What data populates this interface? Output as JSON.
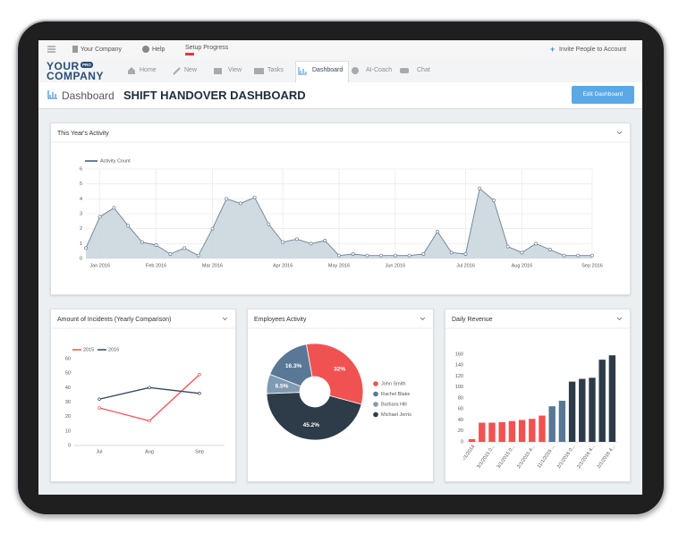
{
  "topbar": {
    "company": "Your Company",
    "help": "Help",
    "setup": "Setup Progress",
    "invite": "Invite People to Account"
  },
  "logo": {
    "line1": "YOUR",
    "badge": "PRO",
    "line2": "COMPANY"
  },
  "nav": [
    "Home",
    "New",
    "View",
    "Tasks",
    "Dashboard",
    "AI-Coach",
    "Chat"
  ],
  "header": {
    "section": "Dashboard",
    "title": "SHIFT HANDOVER DASHBOARD",
    "button": "Edit Dashboard"
  },
  "chart_data": [
    {
      "type": "area",
      "title": "This Year's Activity",
      "categories": [
        null,
        "Jan 2016",
        null,
        null,
        null,
        "Feb 2016",
        null,
        null,
        null,
        "Mar 2016",
        null,
        null,
        null,
        null,
        "Apr 2016",
        null,
        null,
        null,
        "May 2016",
        null,
        null,
        null,
        "Jun 2016",
        null,
        null,
        null,
        null,
        "Jul 2016",
        null,
        null,
        null,
        "Aug 2016",
        null,
        null,
        null,
        null,
        "Sep 2016"
      ],
      "series": [
        {
          "name": "Activity Count",
          "color": "#6b8095",
          "values": [
            0.7,
            2.8,
            3.4,
            2.2,
            1.1,
            0.9,
            0.3,
            0.7,
            0.2,
            2.0,
            4.0,
            3.7,
            4.1,
            2.3,
            1.1,
            1.3,
            1.0,
            1.2,
            0.2,
            0.3,
            0.2,
            0.2,
            0.2,
            0.2,
            0.3,
            1.8,
            0.4,
            0.3,
            4.7,
            3.9,
            0.8,
            0.4,
            1.0,
            0.6,
            0.2,
            0.2,
            0.2
          ]
        }
      ],
      "ylim": [
        0,
        6
      ],
      "yticks": [
        0,
        1,
        2,
        3,
        4,
        5,
        6
      ],
      "grid": true
    },
    {
      "type": "line",
      "title": "Amount of Incidents (Yearly Comparison)",
      "categories": [
        "Jul",
        "Aug",
        "Sep"
      ],
      "series": [
        {
          "name": "2015",
          "color": "#f05252",
          "values": [
            26,
            17,
            49
          ]
        },
        {
          "name": "2016",
          "color": "#34495e",
          "values": [
            32,
            40,
            36
          ]
        }
      ],
      "ylim": [
        0,
        60
      ],
      "yticks": [
        0,
        10,
        20,
        30,
        40,
        50,
        60
      ],
      "grid": false
    },
    {
      "type": "donut",
      "title": "Employees Activity",
      "categories": [
        "John Smith",
        "Rachel Blake",
        "Barbara Hill",
        "Michael Jerris"
      ],
      "values": [
        32,
        16.3,
        6.5,
        45.2
      ],
      "value_labels": [
        "32%",
        "16.3%",
        "6.5%",
        "45.2%"
      ],
      "colors": [
        "#f05252",
        "#587895",
        "#7f9bb3",
        "#2e3b48"
      ]
    },
    {
      "type": "bar",
      "title": "Daily Revenue",
      "categories": [
        "-/1/2014",
        null,
        "3/1/2015 0...",
        null,
        "3/1/2015 0...",
        null,
        "2/1/2015 4...",
        null,
        "11/1/2015 ...",
        null,
        "2/1/2016 0...",
        null,
        "2/1/2016 4...",
        null,
        "2/1/2016 4..."
      ],
      "values": [
        5,
        35,
        35,
        36,
        38,
        40,
        42,
        48,
        65,
        75,
        110,
        115,
        117,
        150,
        158
      ],
      "colors": [
        "#f05252",
        "#f05252",
        "#f05252",
        "#f05252",
        "#f05252",
        "#f05252",
        "#f05252",
        "#f05252",
        "#587895",
        "#587895",
        "#2e3b48",
        "#2e3b48",
        "#2e3b48",
        "#2e3b48",
        "#2e3b48"
      ],
      "ylim": [
        0,
        160
      ],
      "yticks": [
        0,
        20,
        40,
        60,
        80,
        100,
        120,
        140,
        160
      ],
      "grid": false
    }
  ]
}
